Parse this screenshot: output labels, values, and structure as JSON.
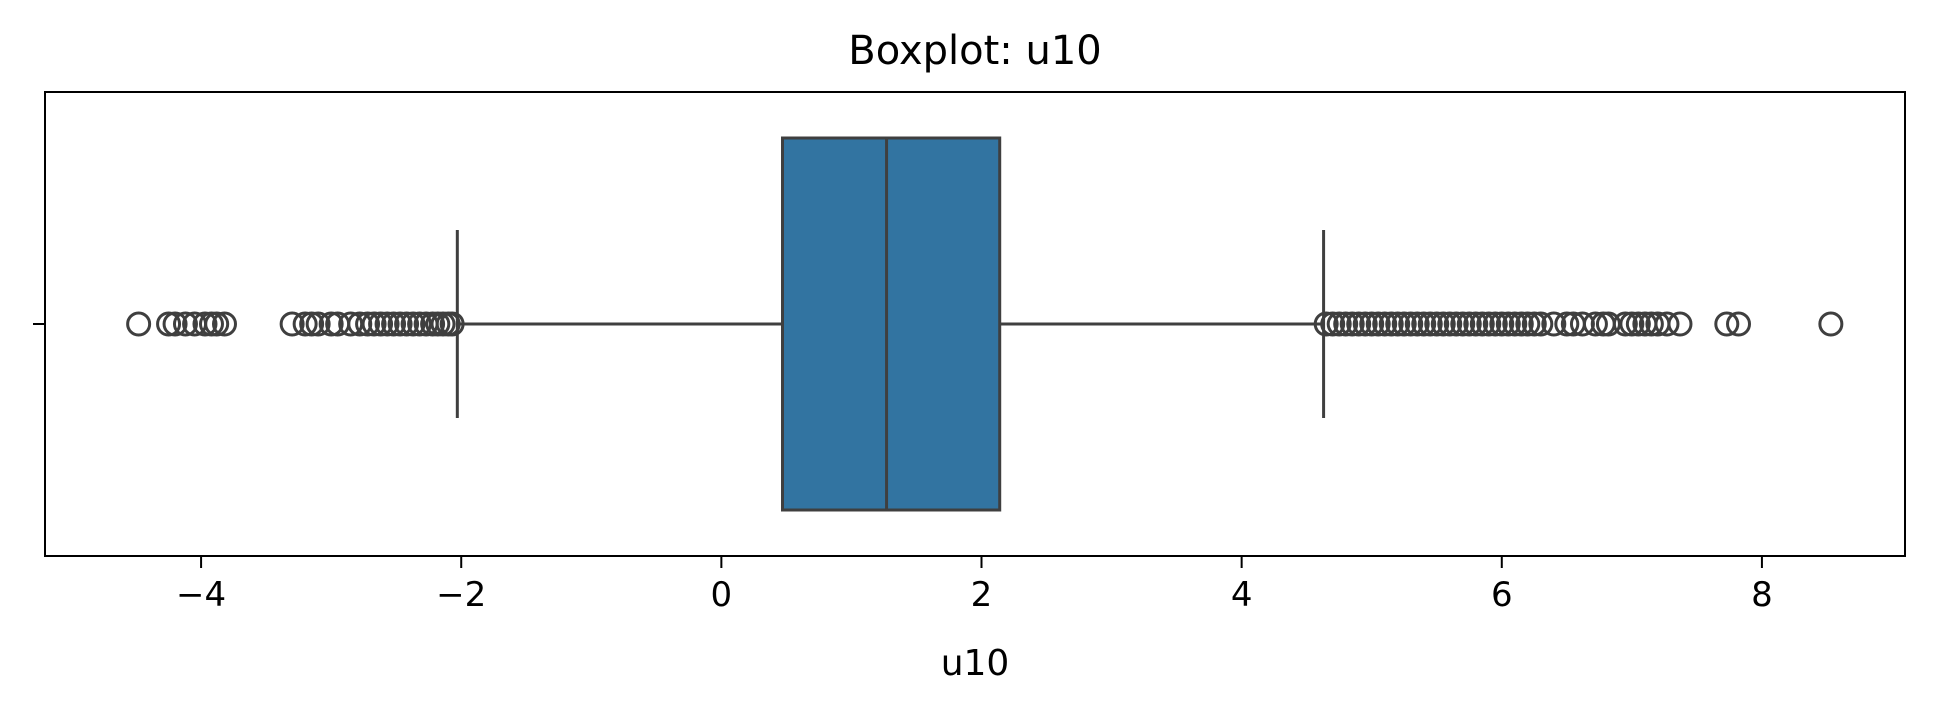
{
  "chart_data": {
    "type": "boxplot",
    "title": "Boxplot: u10",
    "xlabel": "u10",
    "ylabel": "",
    "xlim": [
      -5.2,
      9.1
    ],
    "xticks": [
      -4,
      -2,
      0,
      2,
      4,
      6,
      8
    ],
    "xtick_labels": [
      "−4",
      "−2",
      "0",
      "2",
      "4",
      "6",
      "8"
    ],
    "grid": false,
    "colors": {
      "box": "#3274a1",
      "line": "#3f3f3f"
    },
    "box": {
      "whisker_low": -2.03,
      "q1": 0.47,
      "median": 1.27,
      "q3": 2.14,
      "whisker_high": 4.63
    },
    "outliers": [
      -4.48,
      -4.25,
      -4.2,
      -4.12,
      -4.05,
      -3.97,
      -3.92,
      -3.88,
      -3.82,
      -3.3,
      -3.2,
      -3.15,
      -3.1,
      -3.0,
      -2.95,
      -2.85,
      -2.78,
      -2.72,
      -2.67,
      -2.62,
      -2.57,
      -2.52,
      -2.47,
      -2.42,
      -2.37,
      -2.32,
      -2.27,
      -2.22,
      -2.18,
      -2.14,
      -2.1,
      -2.07,
      4.65,
      4.7,
      4.75,
      4.8,
      4.85,
      4.9,
      4.95,
      5.0,
      5.05,
      5.1,
      5.15,
      5.2,
      5.25,
      5.3,
      5.35,
      5.4,
      5.45,
      5.5,
      5.55,
      5.6,
      5.65,
      5.7,
      5.75,
      5.8,
      5.85,
      5.9,
      5.95,
      6.0,
      6.05,
      6.1,
      6.15,
      6.2,
      6.25,
      6.3,
      6.4,
      6.5,
      6.55,
      6.62,
      6.72,
      6.78,
      6.82,
      6.95,
      7.0,
      7.05,
      7.1,
      7.15,
      7.2,
      7.27,
      7.37,
      7.73,
      7.82,
      8.53
    ]
  }
}
